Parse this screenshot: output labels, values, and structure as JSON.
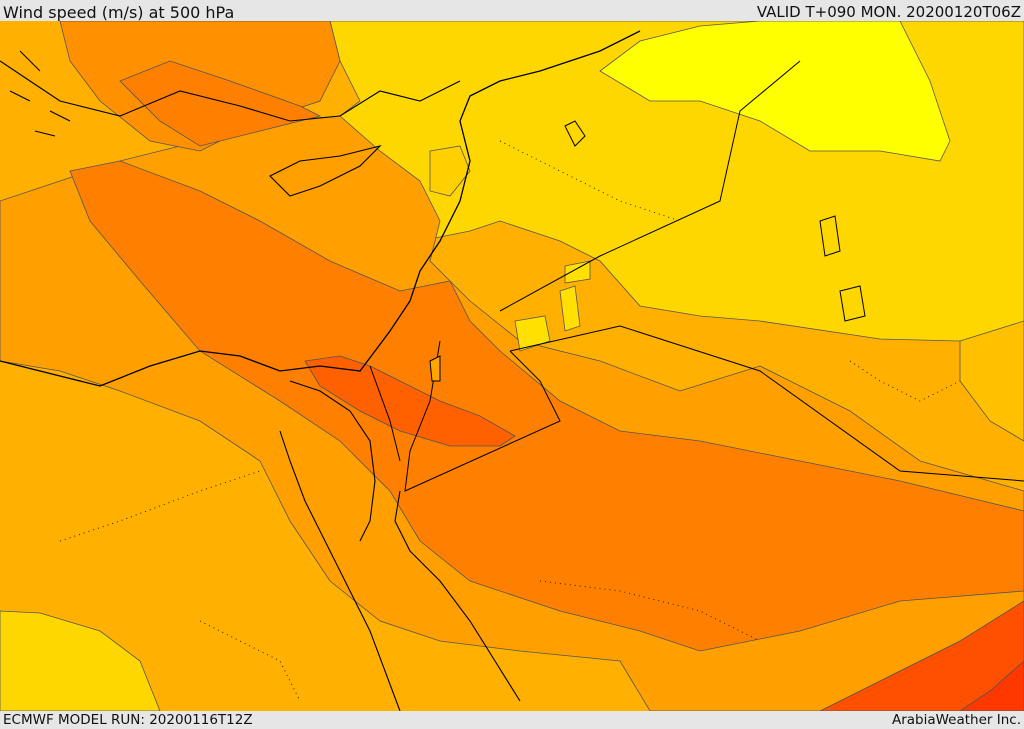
{
  "header": {
    "title": "Wind speed (m/s) at 500 hPa",
    "valid": "VALID T+090 MON. 20200120T06Z"
  },
  "footer": {
    "model_run": "ECMWF MODEL RUN: 20200116T12Z",
    "credit": "ArabiaWeather Inc."
  },
  "colors": {
    "band_lightest": "#FFFF00",
    "band_light": "#FFE000",
    "band_mid_light": "#FFC000",
    "band_mid": "#FFA500",
    "band_mid_strong": "#FF8000",
    "band_strong": "#FF6000",
    "band_strongest": "#FF4000",
    "coastline": "#000000",
    "contour_line": "#555555",
    "border_line": "#000000"
  }
}
